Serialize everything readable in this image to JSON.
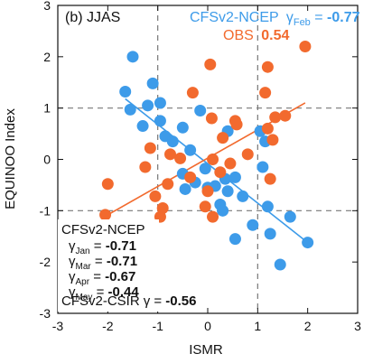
{
  "chart_data": {
    "type": "scatter",
    "panel_label": "(b) JJAS",
    "xlabel": "ISMR",
    "ylabel": "EQUINOO Index",
    "xlim": [
      -3,
      3
    ],
    "ylim": [
      -3,
      3
    ],
    "x_ticks": [
      -3,
      -2,
      -1,
      0,
      1,
      2,
      3
    ],
    "y_ticks": [
      -3,
      -2,
      -1,
      0,
      1,
      2,
      3
    ],
    "reference_lines": {
      "x": [
        -1,
        1
      ],
      "y": [
        -1,
        1
      ],
      "style": "dashed"
    },
    "series": [
      {
        "name": "CFSv2-NCEP",
        "color": "#3d9be9",
        "corr_symbol": "γ",
        "corr_subscript": "Feb",
        "corr_prefix": " = ",
        "corr_value": "-0.77",
        "regression": {
          "x": [
            -1.65,
            2.0
          ],
          "y": [
            1.18,
            -1.62
          ]
        },
        "points": [
          {
            "x": -1.65,
            "y": 1.32
          },
          {
            "x": -1.5,
            "y": 2.0
          },
          {
            "x": -1.55,
            "y": 0.97
          },
          {
            "x": -1.3,
            "y": 0.65
          },
          {
            "x": -1.2,
            "y": 1.05
          },
          {
            "x": -1.1,
            "y": 1.48
          },
          {
            "x": -0.95,
            "y": 1.1
          },
          {
            "x": -0.85,
            "y": 0.45
          },
          {
            "x": -0.7,
            "y": 0.35
          },
          {
            "x": -0.95,
            "y": 0.75
          },
          {
            "x": -0.5,
            "y": 0.62
          },
          {
            "x": -0.35,
            "y": 0.18
          },
          {
            "x": -0.5,
            "y": -0.28
          },
          {
            "x": -0.25,
            "y": -0.45
          },
          {
            "x": -0.45,
            "y": -0.58
          },
          {
            "x": -0.05,
            "y": -0.18
          },
          {
            "x": 0.0,
            "y": -0.55
          },
          {
            "x": 0.15,
            "y": -0.52
          },
          {
            "x": 0.25,
            "y": -0.88
          },
          {
            "x": 0.35,
            "y": -0.38
          },
          {
            "x": 0.4,
            "y": -0.62
          },
          {
            "x": 0.55,
            "y": -0.35
          },
          {
            "x": 0.7,
            "y": -0.72
          },
          {
            "x": 0.3,
            "y": -1.0
          },
          {
            "x": 1.05,
            "y": 0.55
          },
          {
            "x": 1.1,
            "y": -0.15
          },
          {
            "x": 1.15,
            "y": 0.35
          },
          {
            "x": 1.2,
            "y": -0.92
          },
          {
            "x": 0.9,
            "y": -1.28
          },
          {
            "x": 1.25,
            "y": -1.45
          },
          {
            "x": 0.55,
            "y": -1.55
          },
          {
            "x": 1.65,
            "y": -1.12
          },
          {
            "x": 1.45,
            "y": -2.05
          },
          {
            "x": 2.0,
            "y": -1.62
          },
          {
            "x": 0.4,
            "y": 0.55
          },
          {
            "x": -0.15,
            "y": 0.95
          }
        ]
      },
      {
        "name": "OBS",
        "color": "#f26a2e",
        "corr_prefix": "  ",
        "corr_value": "0.54",
        "regression": {
          "x": [
            -2.0,
            1.95
          ],
          "y": [
            -1.08,
            1.1
          ]
        },
        "points": [
          {
            "x": -2.0,
            "y": -0.48
          },
          {
            "x": -2.05,
            "y": -1.08
          },
          {
            "x": -1.25,
            "y": -0.15
          },
          {
            "x": -1.15,
            "y": 0.22
          },
          {
            "x": -1.05,
            "y": -0.72
          },
          {
            "x": -0.9,
            "y": -0.95
          },
          {
            "x": -0.95,
            "y": -1.12
          },
          {
            "x": -0.8,
            "y": -0.48
          },
          {
            "x": -0.75,
            "y": 0.1
          },
          {
            "x": -0.55,
            "y": 0.02
          },
          {
            "x": -0.35,
            "y": -0.35
          },
          {
            "x": -0.3,
            "y": 1.3
          },
          {
            "x": 0.05,
            "y": 1.85
          },
          {
            "x": 0.08,
            "y": 0.8
          },
          {
            "x": 0.1,
            "y": 0.0
          },
          {
            "x": 0.0,
            "y": -0.62
          },
          {
            "x": -0.05,
            "y": -0.92
          },
          {
            "x": 0.1,
            "y": -1.12
          },
          {
            "x": 0.3,
            "y": 0.42
          },
          {
            "x": 0.55,
            "y": 0.75
          },
          {
            "x": 0.58,
            "y": 0.68
          },
          {
            "x": 0.45,
            "y": -0.08
          },
          {
            "x": 0.8,
            "y": 0.1
          },
          {
            "x": 1.2,
            "y": 1.8
          },
          {
            "x": 1.15,
            "y": 1.3
          },
          {
            "x": 1.2,
            "y": 0.6
          },
          {
            "x": 1.25,
            "y": -0.38
          },
          {
            "x": 1.3,
            "y": 0.38
          },
          {
            "x": 1.35,
            "y": 0.82
          },
          {
            "x": 1.55,
            "y": 0.85
          },
          {
            "x": 1.95,
            "y": 2.2
          },
          {
            "x": 0.25,
            "y": -0.25
          }
        ]
      }
    ],
    "annotations": {
      "ncep_title": "CFSv2-NCEP",
      "ncep_stats": [
        {
          "sub": "Jan",
          "value": "-0.71"
        },
        {
          "sub": "Mar",
          "value": "-0.71"
        },
        {
          "sub": "Apr",
          "value": "-0.67"
        },
        {
          "sub": "May",
          "value": "-0.44"
        }
      ],
      "csir_label": "CFSv2-CSIR",
      "csir_symbol": "γ",
      "csir_prefix": " = ",
      "csir_value": "-0.56",
      "stat_prefix": " = "
    }
  }
}
